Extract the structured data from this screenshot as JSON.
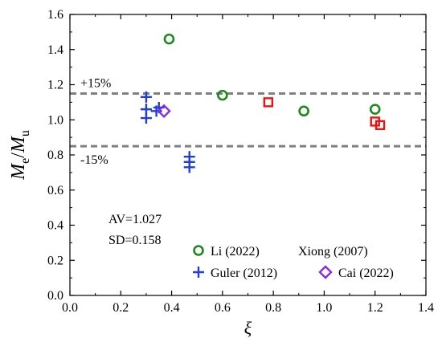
{
  "chart_data": {
    "type": "scatter",
    "xlabel": "ξ",
    "ylabel_main": "M",
    "ylabel_sub1": "e",
    "ylabel_sep": "/",
    "ylabel_main2": "M",
    "ylabel_sub2": "u",
    "xlim": [
      0.0,
      1.4
    ],
    "ylim": [
      0.0,
      1.6
    ],
    "x_ticks": [
      "0.0",
      "0.2",
      "0.4",
      "0.6",
      "0.8",
      "1.0",
      "1.2",
      "1.4"
    ],
    "y_ticks": [
      "0.0",
      "0.2",
      "0.4",
      "0.6",
      "0.8",
      "1.0",
      "1.2",
      "1.4",
      "1.6"
    ],
    "x_tick_values": [
      0.0,
      0.2,
      0.4,
      0.6,
      0.8,
      1.0,
      1.2,
      1.4
    ],
    "y_tick_values": [
      0.0,
      0.2,
      0.4,
      0.6,
      0.8,
      1.0,
      1.2,
      1.4,
      1.6
    ],
    "reference_lines": [
      {
        "y": 1.15,
        "label": "+15%"
      },
      {
        "y": 0.85,
        "label": "-15%"
      }
    ],
    "stats": {
      "av": "AV=1.027",
      "sd": "SD=0.158"
    },
    "series": [
      {
        "name": "Li (2022)",
        "marker": "circle",
        "color": "#1a8a1a",
        "points": [
          [
            0.39,
            1.46
          ],
          [
            0.6,
            1.14
          ],
          [
            0.92,
            1.05
          ],
          [
            1.2,
            1.06
          ]
        ]
      },
      {
        "name": "Xiong (2007)",
        "marker": "square",
        "color": "#ee1111",
        "points": [
          [
            0.78,
            1.1
          ],
          [
            1.2,
            0.99
          ],
          [
            1.22,
            0.97
          ]
        ]
      },
      {
        "name": "Guler (2012)",
        "marker": "plus",
        "color": "#1f3fd6",
        "points": [
          [
            0.3,
            1.13
          ],
          [
            0.3,
            1.06
          ],
          [
            0.3,
            1.01
          ],
          [
            0.34,
            1.05
          ],
          [
            0.35,
            1.07
          ],
          [
            0.47,
            0.79
          ],
          [
            0.47,
            0.76
          ],
          [
            0.47,
            0.73
          ]
        ]
      },
      {
        "name": "Cai (2022)",
        "marker": "diamond",
        "color": "#8a2be2",
        "points": [
          [
            0.37,
            1.05
          ]
        ]
      }
    ],
    "legend_position": "lower-right"
  }
}
